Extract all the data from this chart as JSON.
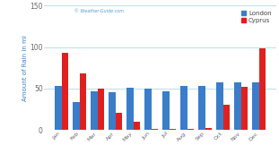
{
  "months": [
    "Jan",
    "Feb",
    "Mar",
    "Apr",
    "May",
    "Jun",
    "Jul",
    "Aug",
    "Sep",
    "Oct",
    "Nov",
    "Dec"
  ],
  "london": [
    53,
    34,
    47,
    46,
    51,
    50,
    47,
    53,
    53,
    57,
    57,
    57
  ],
  "cyprus": [
    93,
    68,
    50,
    21,
    10,
    1,
    1,
    1,
    2,
    30,
    52,
    98
  ],
  "london_color": "#3a7dc9",
  "cyprus_color": "#e02020",
  "ylabel": "Amount of Rain in ml",
  "ylim": [
    0,
    150
  ],
  "yticks": [
    0,
    50,
    100,
    150
  ],
  "watermark": "© Weather-Guide.com",
  "legend_london": "London",
  "legend_cyprus": "Cyprus",
  "bg_color": "#ffffff",
  "grid_color": "#add8e6",
  "bar_width": 0.38
}
